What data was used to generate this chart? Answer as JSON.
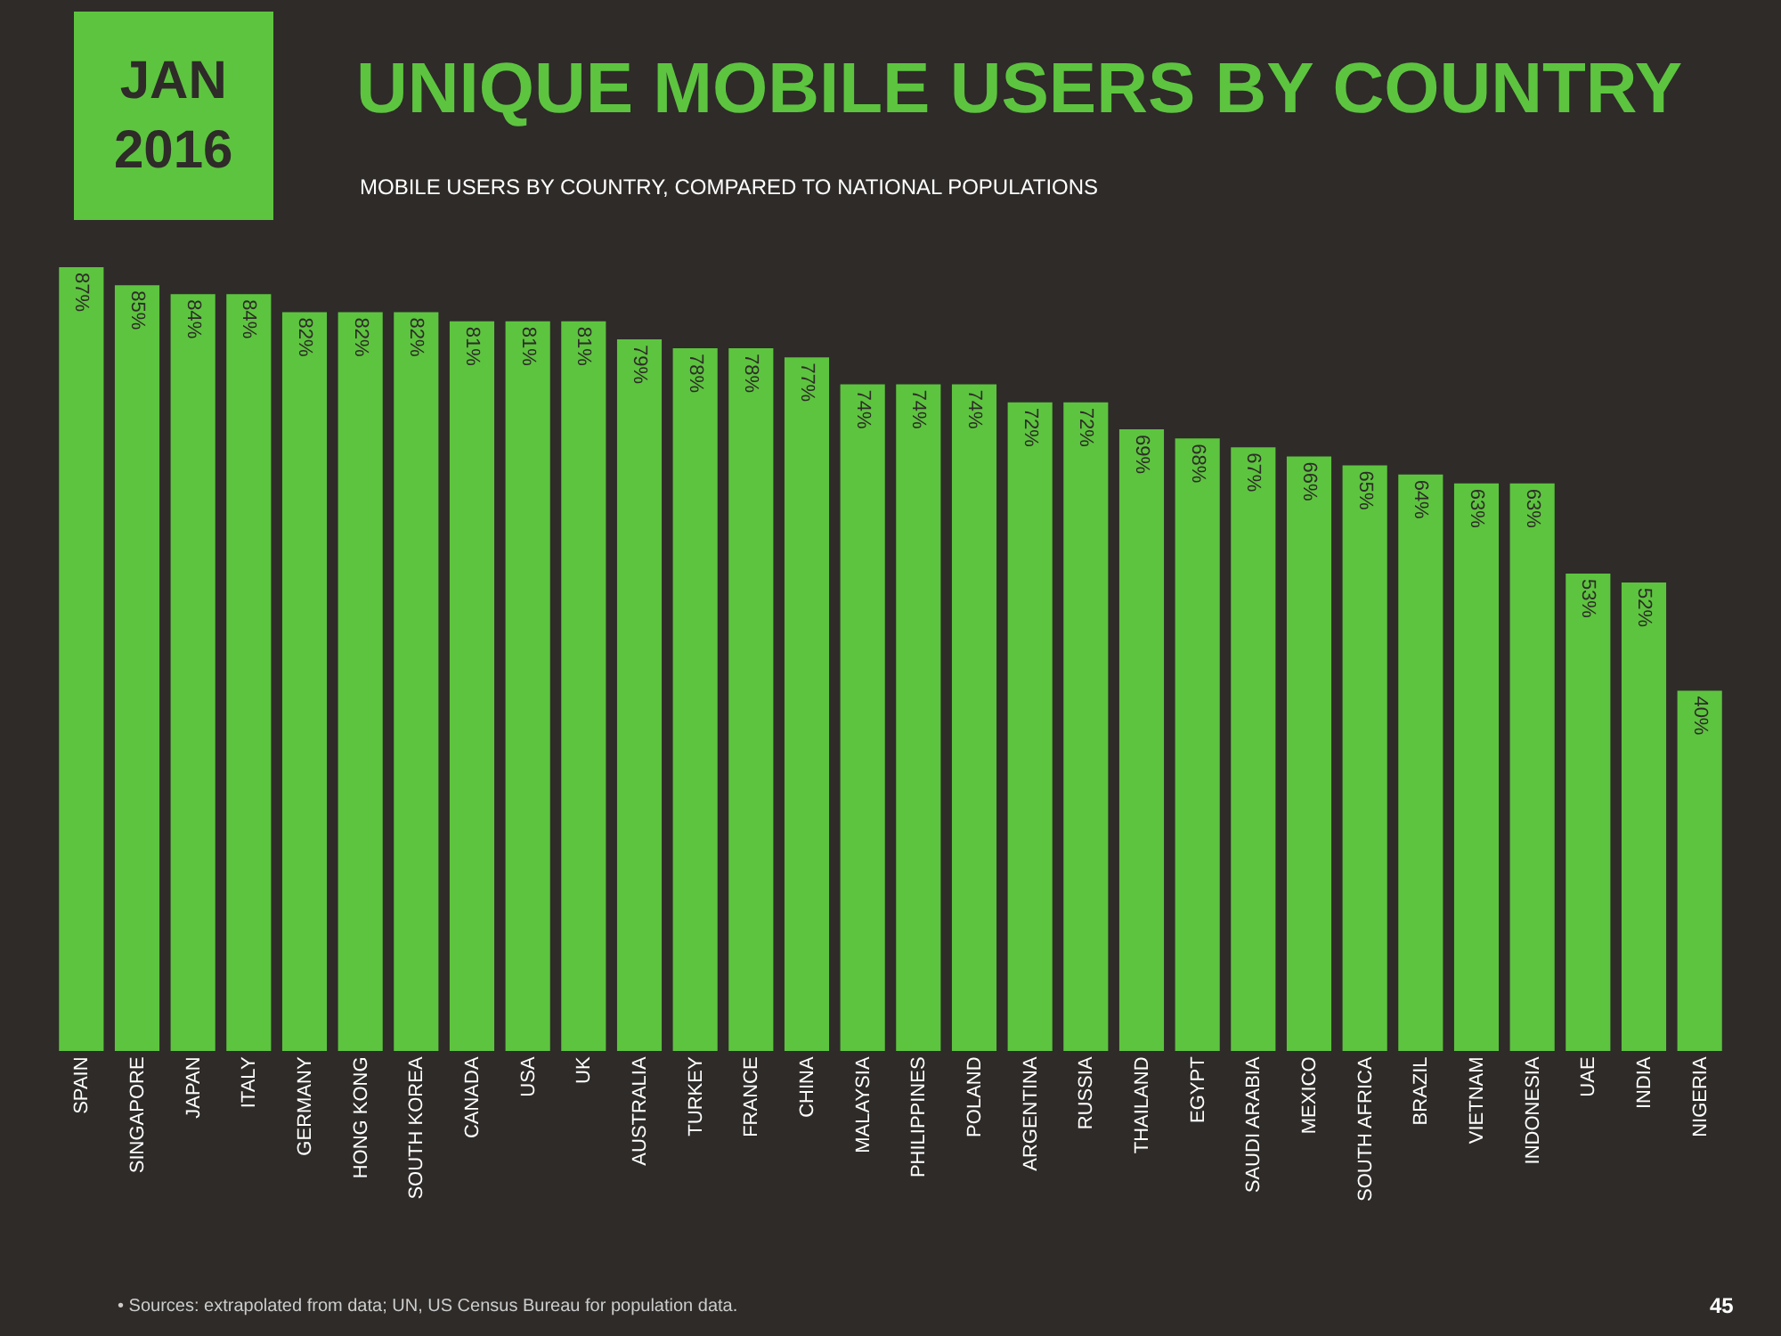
{
  "chart_data": {
    "type": "bar",
    "title": "UNIQUE MOBILE USERS BY COUNTRY",
    "subtitle": "MOBILE USERS BY COUNTRY, COMPARED TO NATIONAL POPULATIONS",
    "categories": [
      "SPAIN",
      "SINGAPORE",
      "JAPAN",
      "ITALY",
      "GERMANY",
      "HONG KONG",
      "SOUTH KOREA",
      "CANADA",
      "USA",
      "UK",
      "AUSTRALIA",
      "TURKEY",
      "FRANCE",
      "CHINA",
      "MALAYSIA",
      "PHILIPPINES",
      "POLAND",
      "ARGENTINA",
      "RUSSIA",
      "THAILAND",
      "EGYPT",
      "SAUDI ARABIA",
      "MEXICO",
      "SOUTH AFRICA",
      "BRAZIL",
      "VIETNAM",
      "INDONESIA",
      "UAE",
      "INDIA",
      "NIGERIA"
    ],
    "values": [
      87,
      85,
      84,
      84,
      82,
      82,
      82,
      81,
      81,
      81,
      79,
      78,
      78,
      77,
      74,
      74,
      74,
      72,
      72,
      69,
      68,
      67,
      66,
      65,
      64,
      63,
      63,
      53,
      52,
      40
    ],
    "value_labels": [
      "87%",
      "85%",
      "84%",
      "84%",
      "82%",
      "82%",
      "82%",
      "81%",
      "81%",
      "81%",
      "79%",
      "78%",
      "78%",
      "77%",
      "74%",
      "74%",
      "74%",
      "72%",
      "72%",
      "69%",
      "68%",
      "67%",
      "66%",
      "65%",
      "64%",
      "63%",
      "63%",
      "53%",
      "52%",
      "40%"
    ],
    "color": "#5dc43f",
    "annotations": [
      "JAN\n2016",
      "• Sources: extrapolated from data; UN, US Census Bureau for population data.",
      "45"
    ]
  }
}
